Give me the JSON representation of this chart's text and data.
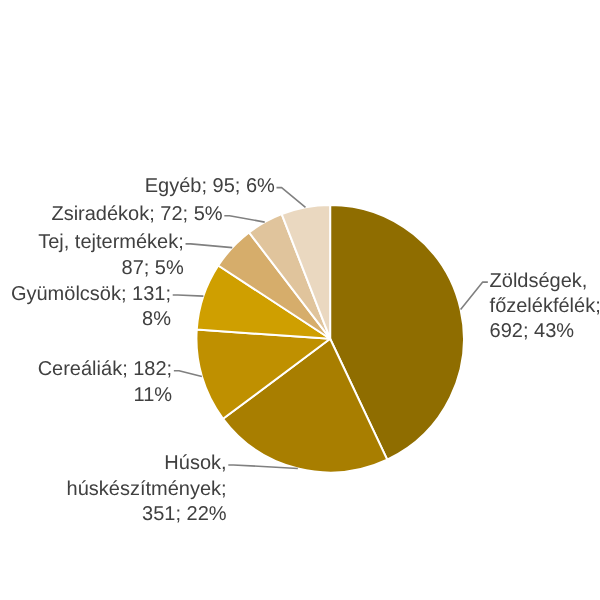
{
  "chart_data": {
    "type": "pie",
    "categories": [
      "Zöldségek, főzelékfélék",
      "Húsok, húskészítmények",
      "Cereáliák",
      "Gyümölcsök",
      "Tej, tejtermékek",
      "Zsiradékok",
      "Egyéb"
    ],
    "values": [
      692,
      351,
      182,
      131,
      87,
      72,
      95
    ],
    "value_labels": [
      "; 692; 43%",
      "; 351; 22%",
      "; 182; 11%",
      "; 131; 8%",
      "; 87; 5%",
      "; 72; 5%",
      "; 95; 6%"
    ],
    "colors": [
      "#8f6d00",
      "#a87e00",
      "#bf9000",
      "#cf9f00",
      "#d6ad6b",
      "#e0c49c",
      "#ead8c0"
    ],
    "legend": false
  }
}
